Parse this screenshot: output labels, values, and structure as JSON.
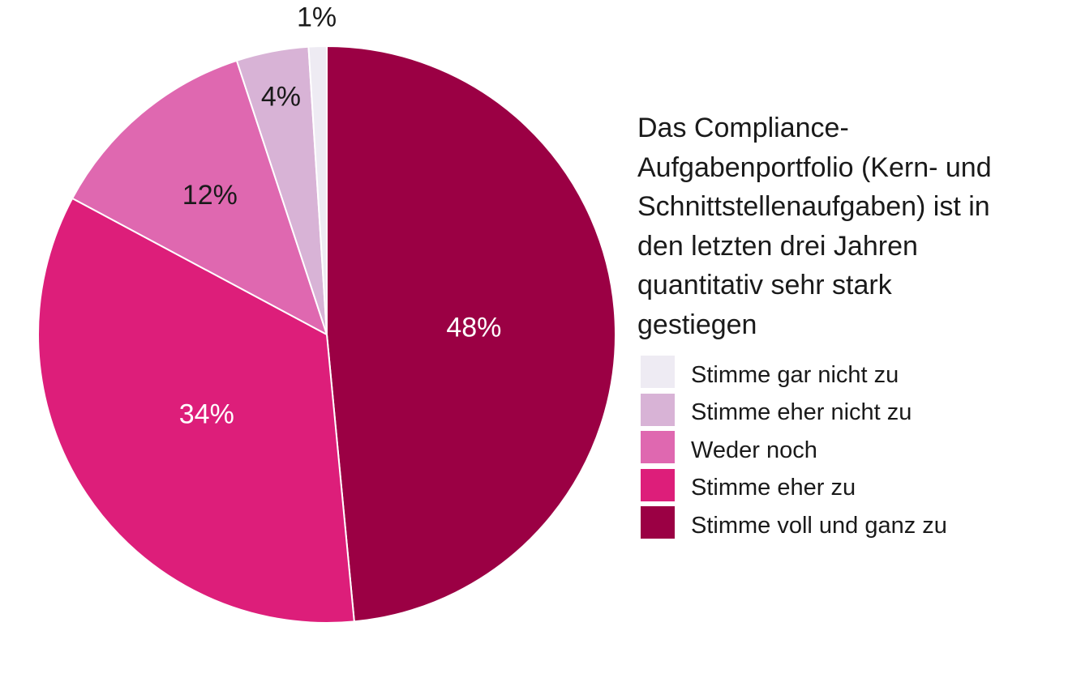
{
  "chart_data": {
    "type": "pie",
    "title": "Das Compliance-\nAufgabenportfolio (Kern- und\nSchnittstellenaufgaben) ist in\nden letzten drei Jahren\nquantitativ sehr stark\ngestiegen",
    "legend_position": "right",
    "slices": [
      {
        "name": "Stimme voll und ganz zu",
        "value": 48,
        "label": "48%",
        "color": "#9b0044",
        "label_color": "#ffffff"
      },
      {
        "name": "Stimme eher zu",
        "value": 34,
        "label": "34%",
        "color": "#dd1e7a",
        "label_color": "#ffffff"
      },
      {
        "name": "Weder noch",
        "value": 12,
        "label": "12%",
        "color": "#df68b0",
        "label_color": "#1a1a1a"
      },
      {
        "name": "Stimme eher nicht zu",
        "value": 4,
        "label": "4%",
        "color": "#d8b3d6",
        "label_color": "#1a1a1a"
      },
      {
        "name": "Stimme gar nicht zu",
        "value": 1,
        "label": "1%",
        "color": "#eeebf3",
        "label_color": "#1a1a1a"
      }
    ],
    "legend_order": [
      "Stimme gar nicht zu",
      "Stimme eher nicht zu",
      "Weder noch",
      "Stimme eher zu",
      "Stimme voll und ganz zu"
    ]
  }
}
